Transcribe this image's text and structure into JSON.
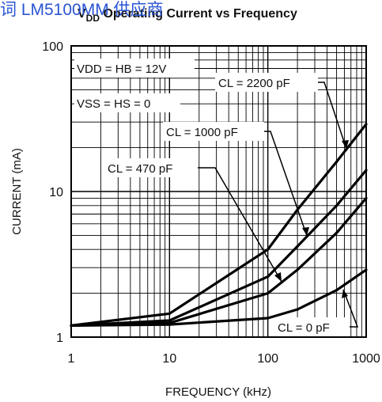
{
  "overlay_text": "词 LM5100MM 供应商",
  "chart_data": {
    "type": "line",
    "title_prefix": "V",
    "title_subscript": "DD",
    "title_rest": " Operating Current vs Frequency",
    "xlabel": "FREQUENCY (kHz)",
    "ylabel": "CURRENT (mA)",
    "xscale": "log",
    "yscale": "log",
    "xlim": [
      1,
      1000
    ],
    "ylim": [
      1,
      100
    ],
    "grid": true,
    "x_tick_labels": [
      "1",
      "10",
      "100",
      "1000"
    ],
    "y_tick_labels": [
      "1",
      "10",
      "100"
    ],
    "series": [
      {
        "name": "CL = 2200 pF",
        "x": [
          1,
          10,
          100,
          200,
          500,
          1000
        ],
        "y": [
          1.2,
          1.45,
          4.0,
          7.5,
          16,
          29
        ]
      },
      {
        "name": "CL = 1000 pF",
        "x": [
          1,
          10,
          100,
          200,
          500,
          1000
        ],
        "y": [
          1.2,
          1.3,
          2.6,
          4.2,
          8.0,
          14
        ]
      },
      {
        "name": "CL = 470 pF",
        "x": [
          1,
          10,
          100,
          200,
          500,
          1000
        ],
        "y": [
          1.2,
          1.25,
          2.0,
          2.9,
          5.2,
          9.0
        ]
      },
      {
        "name": "CL = 0 pF",
        "x": [
          1,
          10,
          100,
          200,
          500,
          1000
        ],
        "y": [
          1.2,
          1.22,
          1.35,
          1.55,
          2.1,
          2.9
        ]
      }
    ],
    "annotations": {
      "vdd": "VDD = HB = 12V",
      "vss": "VSS = HS = 0",
      "cl2200": "CL = 2200 pF",
      "cl1000": "CL = 1000 pF",
      "cl470": "CL = 470 pF",
      "cl0": "CL = 0 pF"
    },
    "line_color": "#000000"
  }
}
